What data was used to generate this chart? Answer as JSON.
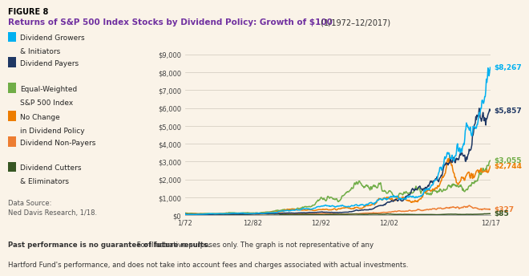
{
  "title_line1": "FIGURE 8",
  "title_line2_bold": "Returns of S&P 500 Index Stocks by Dividend Policy: Growth of $100",
  "title_line2_normal": " (1/1972–12/2017)",
  "background_color": "#faf3e8",
  "plot_bg_color": "#faf3e8",
  "x_ticks": [
    "1/72",
    "12/82",
    "12/92",
    "12/02",
    "12/17"
  ],
  "x_tick_positions": [
    0,
    10,
    20,
    30,
    45
  ],
  "y_ticks": [
    0,
    1000,
    2000,
    3000,
    4000,
    5000,
    6000,
    7000,
    8000,
    9000
  ],
  "y_tick_labels": [
    "$0",
    "$1,000",
    "$2,000",
    "$3,000",
    "$4,000",
    "$5,000",
    "$6,000",
    "$7,000",
    "$8,000",
    "$9,000"
  ],
  "series_order": [
    "dividend_growers",
    "dividend_payers",
    "equal_weighted",
    "no_change",
    "non_payers",
    "cutters"
  ],
  "series": {
    "dividend_growers": {
      "label1": "Dividend Growers",
      "label2": "& Initiators",
      "color": "#00b0f0",
      "end_value": "$8,267",
      "final": 8267
    },
    "dividend_payers": {
      "label1": "Dividend Payers",
      "label2": "",
      "color": "#1f3864",
      "end_value": "$5,857",
      "final": 5857
    },
    "equal_weighted": {
      "label1": "Equal-Weighted",
      "label2": "S&P 500 Index",
      "color": "#70ad47",
      "end_value": "$3,055",
      "final": 3055
    },
    "no_change": {
      "label1": "No Change",
      "label2": "in Dividend Policy",
      "color": "#ed7d00",
      "end_value": "$2,744",
      "final": 2744
    },
    "non_payers": {
      "label1": "Dividend Non-Payers",
      "label2": "",
      "color": "#ed7d31",
      "end_value": "$327",
      "final": 327
    },
    "cutters": {
      "label1": "Dividend Cutters",
      "label2": "& Eliminators",
      "color": "#375623",
      "end_value": "$85",
      "final": 85
    }
  },
  "data_source": "Data Source:\nNed Davis Research, 1/18.",
  "footnote_bold": "Past performance is no guarantee of future results.",
  "footnote_normal": " For illustrative purposes only. The graph is not representative of any\nHartford Fund's performance, and does not take into account fees and charges associated with actual investments.",
  "grid_color": "#d0c8bc",
  "title_color_fig": "#000000",
  "title_color_bold": "#7030a0",
  "vol": {
    "dividend_growers": 0.14,
    "dividend_payers": 0.13,
    "equal_weighted": 0.16,
    "no_change": 0.16,
    "non_payers": 0.18,
    "cutters": 0.2
  },
  "seed": {
    "dividend_growers": 1,
    "dividend_payers": 2,
    "equal_weighted": 3,
    "no_change": 4,
    "non_payers": 5,
    "cutters": 6
  }
}
